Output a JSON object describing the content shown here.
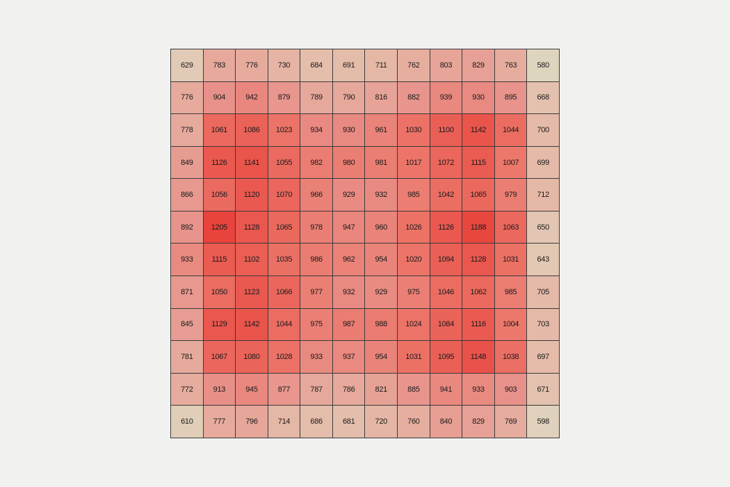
{
  "page": {
    "background_color": "#F1F1F0"
  },
  "chart_data": {
    "type": "heatmap",
    "rows": 12,
    "cols": 12,
    "values": [
      [
        629,
        783,
        776,
        730,
        684,
        691,
        711,
        762,
        803,
        829,
        763,
        580
      ],
      [
        776,
        904,
        942,
        879,
        789,
        790,
        816,
        882,
        939,
        930,
        895,
        668
      ],
      [
        778,
        1061,
        1086,
        1023,
        934,
        930,
        961,
        1030,
        1100,
        1142,
        1044,
        700
      ],
      [
        849,
        1126,
        1141,
        1055,
        982,
        980,
        981,
        1017,
        1072,
        1115,
        1007,
        699
      ],
      [
        866,
        1056,
        1120,
        1070,
        966,
        929,
        932,
        985,
        1042,
        1065,
        979,
        712
      ],
      [
        892,
        1205,
        1128,
        1065,
        978,
        947,
        960,
        1026,
        1126,
        1188,
        1063,
        650
      ],
      [
        933,
        1115,
        1102,
        1035,
        986,
        962,
        954,
        1020,
        1094,
        1128,
        1031,
        643
      ],
      [
        871,
        1050,
        1123,
        1066,
        977,
        932,
        929,
        975,
        1046,
        1062,
        985,
        705
      ],
      [
        845,
        1129,
        1142,
        1044,
        975,
        987,
        988,
        1024,
        1084,
        1116,
        1004,
        703
      ],
      [
        781,
        1067,
        1080,
        1028,
        933,
        937,
        954,
        1031,
        1095,
        1148,
        1038,
        697
      ],
      [
        772,
        913,
        945,
        877,
        787,
        786,
        821,
        885,
        941,
        933,
        903,
        671
      ],
      [
        610,
        777,
        796,
        714,
        686,
        681,
        720,
        760,
        840,
        829,
        769,
        598
      ]
    ],
    "vmin": 580,
    "vmax": 1205,
    "annotations": "each cell shows its numeric value",
    "title": "",
    "xlabel": "",
    "ylabel": "",
    "axis_tick_labels": "none visible",
    "legend": "none",
    "colormap_stops": [
      {
        "t": 0.0,
        "color": "#DED5BF"
      },
      {
        "t": 0.192,
        "color": "#E5BAA8"
      },
      {
        "t": 0.518,
        "color": "#E8918A"
      },
      {
        "t": 0.683,
        "color": "#EC776B"
      },
      {
        "t": 1.0,
        "color": "#E8433C"
      }
    ],
    "cell_border_color": "#3A3A3A",
    "value_text_color": "#1A1A1A"
  }
}
